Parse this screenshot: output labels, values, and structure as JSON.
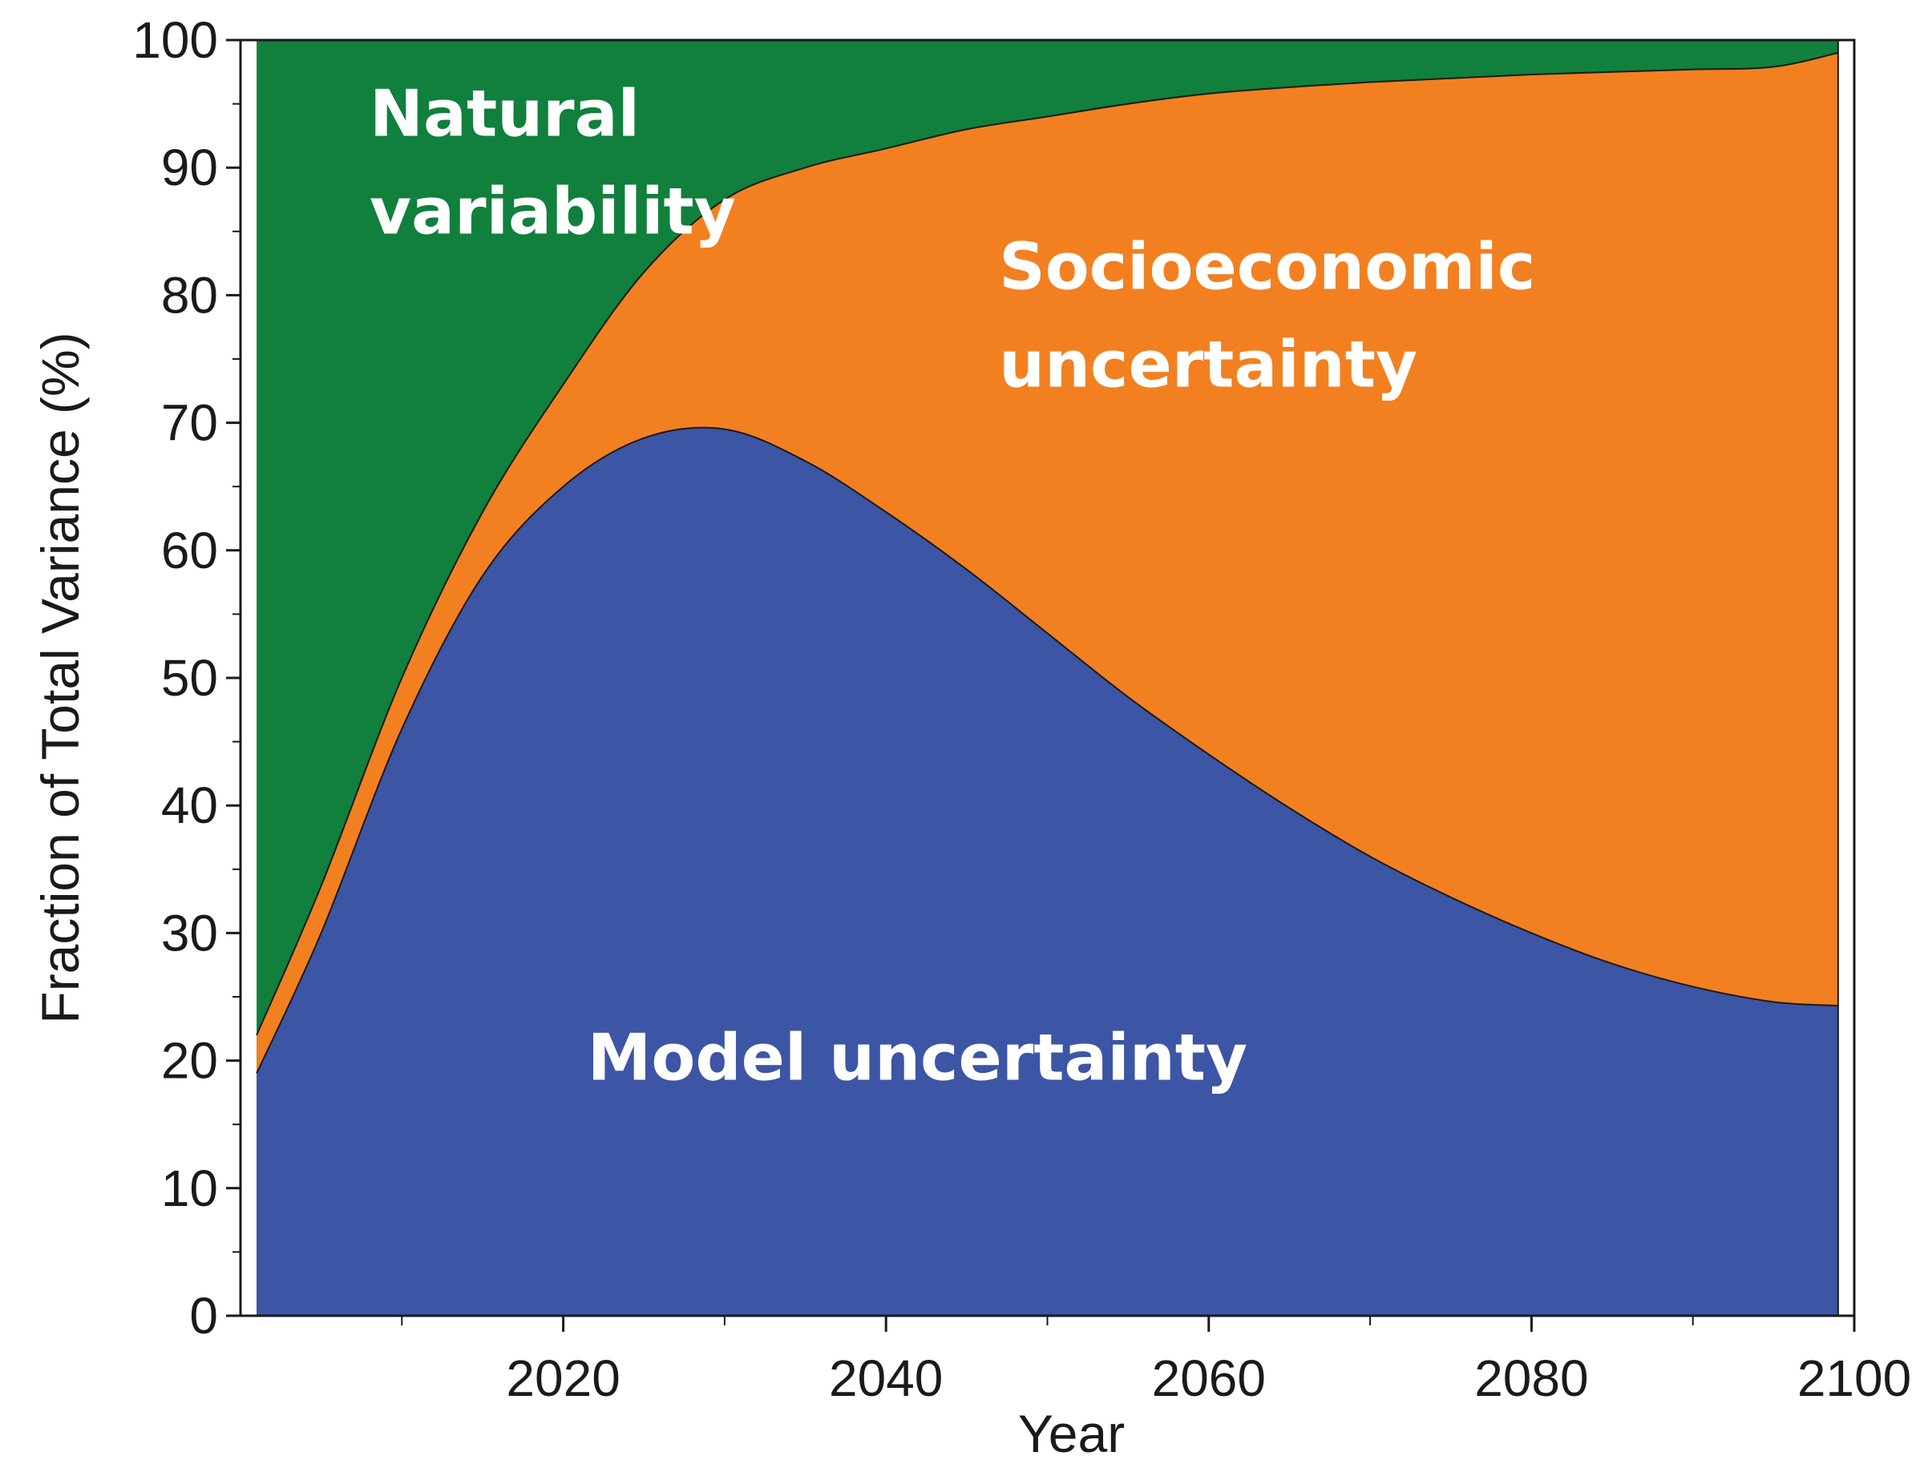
{
  "chart_data": {
    "type": "area",
    "stacked": true,
    "title": "",
    "xlabel": "Year",
    "ylabel": "Fraction of Total Variance  (%)",
    "xlim": [
      2000,
      2100
    ],
    "ylim": [
      0,
      100
    ],
    "x_ticks": [
      2020,
      2040,
      2060,
      2080,
      2100
    ],
    "y_ticks": [
      0,
      10,
      20,
      30,
      40,
      50,
      60,
      70,
      80,
      90,
      100
    ],
    "x": [
      2001,
      2005,
      2010,
      2015,
      2020,
      2025,
      2030,
      2035,
      2040,
      2045,
      2050,
      2055,
      2060,
      2065,
      2070,
      2075,
      2080,
      2085,
      2090,
      2095,
      2099
    ],
    "series": [
      {
        "name": "Model uncertainty",
        "label_lines": [
          "Model uncertainty"
        ],
        "color": "#3c55a5",
        "values": [
          19,
          30,
          46,
          58,
          65,
          68.8,
          69.5,
          67,
          63,
          58.5,
          53.5,
          48.5,
          44,
          39.8,
          36,
          32.8,
          30,
          27.6,
          25.8,
          24.6,
          24.3
        ]
      },
      {
        "name": "Socioeconomic uncertainty",
        "label_lines": [
          "Socioeconomic",
          "uncertainty"
        ],
        "color": "#f28021",
        "values": [
          3,
          3.7,
          4,
          5,
          8,
          13,
          18,
          23,
          28.5,
          34.5,
          40.5,
          46.5,
          51.8,
          56.5,
          60.7,
          64.2,
          67.3,
          69.9,
          71.9,
          73.3,
          74.7
        ]
      },
      {
        "name": "Natural variability",
        "label_lines": [
          "Natural",
          "variability"
        ],
        "color": "#10803c",
        "values": [
          78,
          66.3,
          50,
          37,
          27,
          18.2,
          12.5,
          10,
          8.5,
          7,
          6,
          5,
          4.2,
          3.7,
          3.3,
          3,
          2.7,
          2.5,
          2.3,
          2.1,
          1
        ]
      }
    ]
  }
}
